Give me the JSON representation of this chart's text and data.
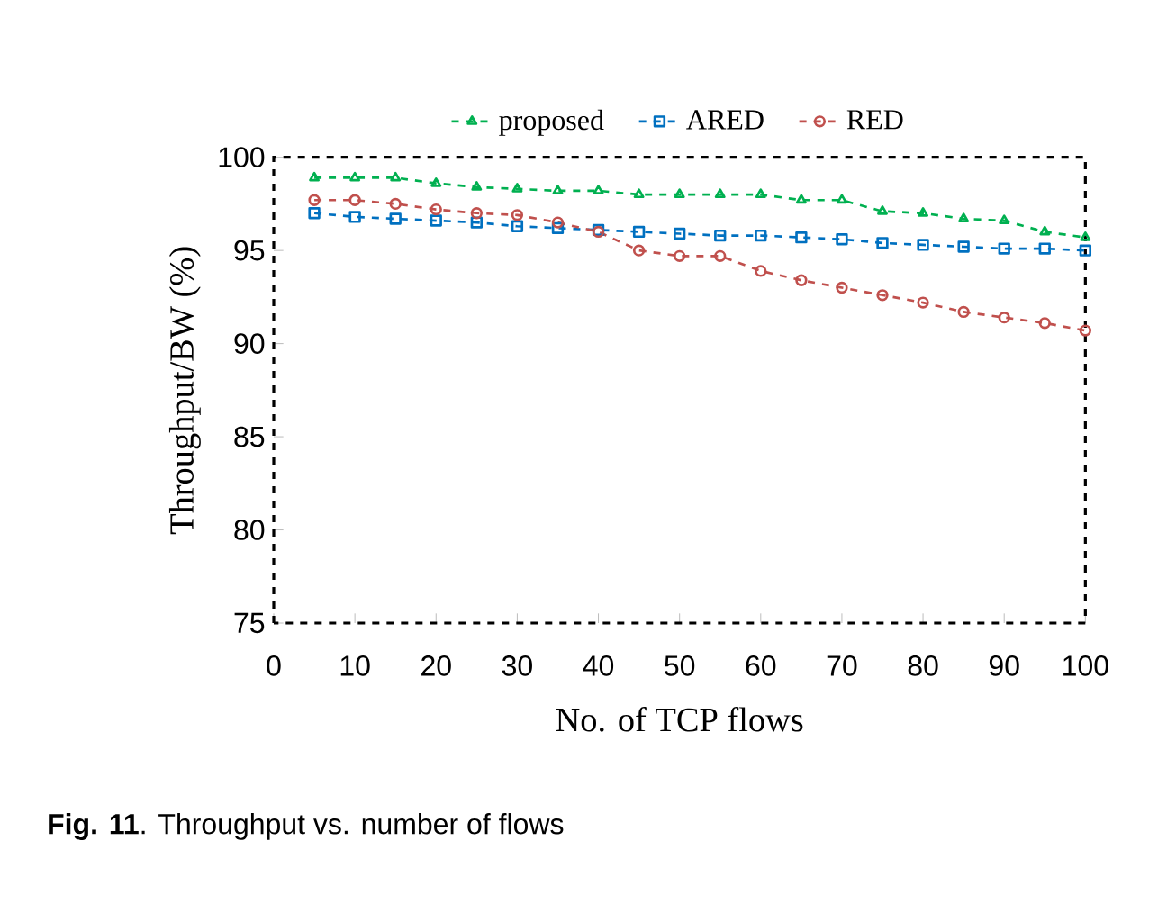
{
  "chart_data": {
    "type": "line",
    "xlabel": "No. of TCP flows",
    "ylabel": "Throughput/BW (%)",
    "annotations": [
      "**Fig. 11**. Throughput vs. number of flows"
    ],
    "x": [
      5,
      10,
      15,
      20,
      25,
      30,
      35,
      40,
      45,
      50,
      55,
      60,
      65,
      70,
      75,
      80,
      85,
      90,
      95,
      100
    ],
    "series": [
      {
        "name": "proposed",
        "color": "#00b050",
        "marker": "triangle",
        "values": [
          98.9,
          98.9,
          98.9,
          98.6,
          98.4,
          98.3,
          98.2,
          98.2,
          98.0,
          98.0,
          98.0,
          98.0,
          97.7,
          97.7,
          97.1,
          97.0,
          96.7,
          96.6,
          96.0,
          95.7
        ]
      },
      {
        "name": "ARED",
        "color": "#0070c0",
        "marker": "square",
        "values": [
          97.0,
          96.8,
          96.7,
          96.6,
          96.5,
          96.3,
          96.2,
          96.1,
          96.0,
          95.9,
          95.8,
          95.8,
          95.7,
          95.6,
          95.4,
          95.3,
          95.2,
          95.1,
          95.1,
          95.0
        ]
      },
      {
        "name": "RED",
        "color": "#c0504d",
        "marker": "circle",
        "values": [
          97.7,
          97.7,
          97.5,
          97.2,
          97.0,
          96.9,
          96.5,
          96.0,
          95.0,
          94.7,
          94.7,
          93.9,
          93.4,
          93.0,
          92.6,
          92.2,
          91.7,
          91.4,
          91.1,
          90.7
        ]
      }
    ],
    "xlim": [
      0,
      100
    ],
    "xticks": [
      0,
      10,
      20,
      30,
      40,
      50,
      60,
      70,
      80,
      90,
      100
    ],
    "ylim": [
      75,
      100
    ],
    "yticks": [
      75,
      80,
      85,
      90,
      95,
      100
    ],
    "line_style": "dashed",
    "legend": "top",
    "grid": false
  }
}
